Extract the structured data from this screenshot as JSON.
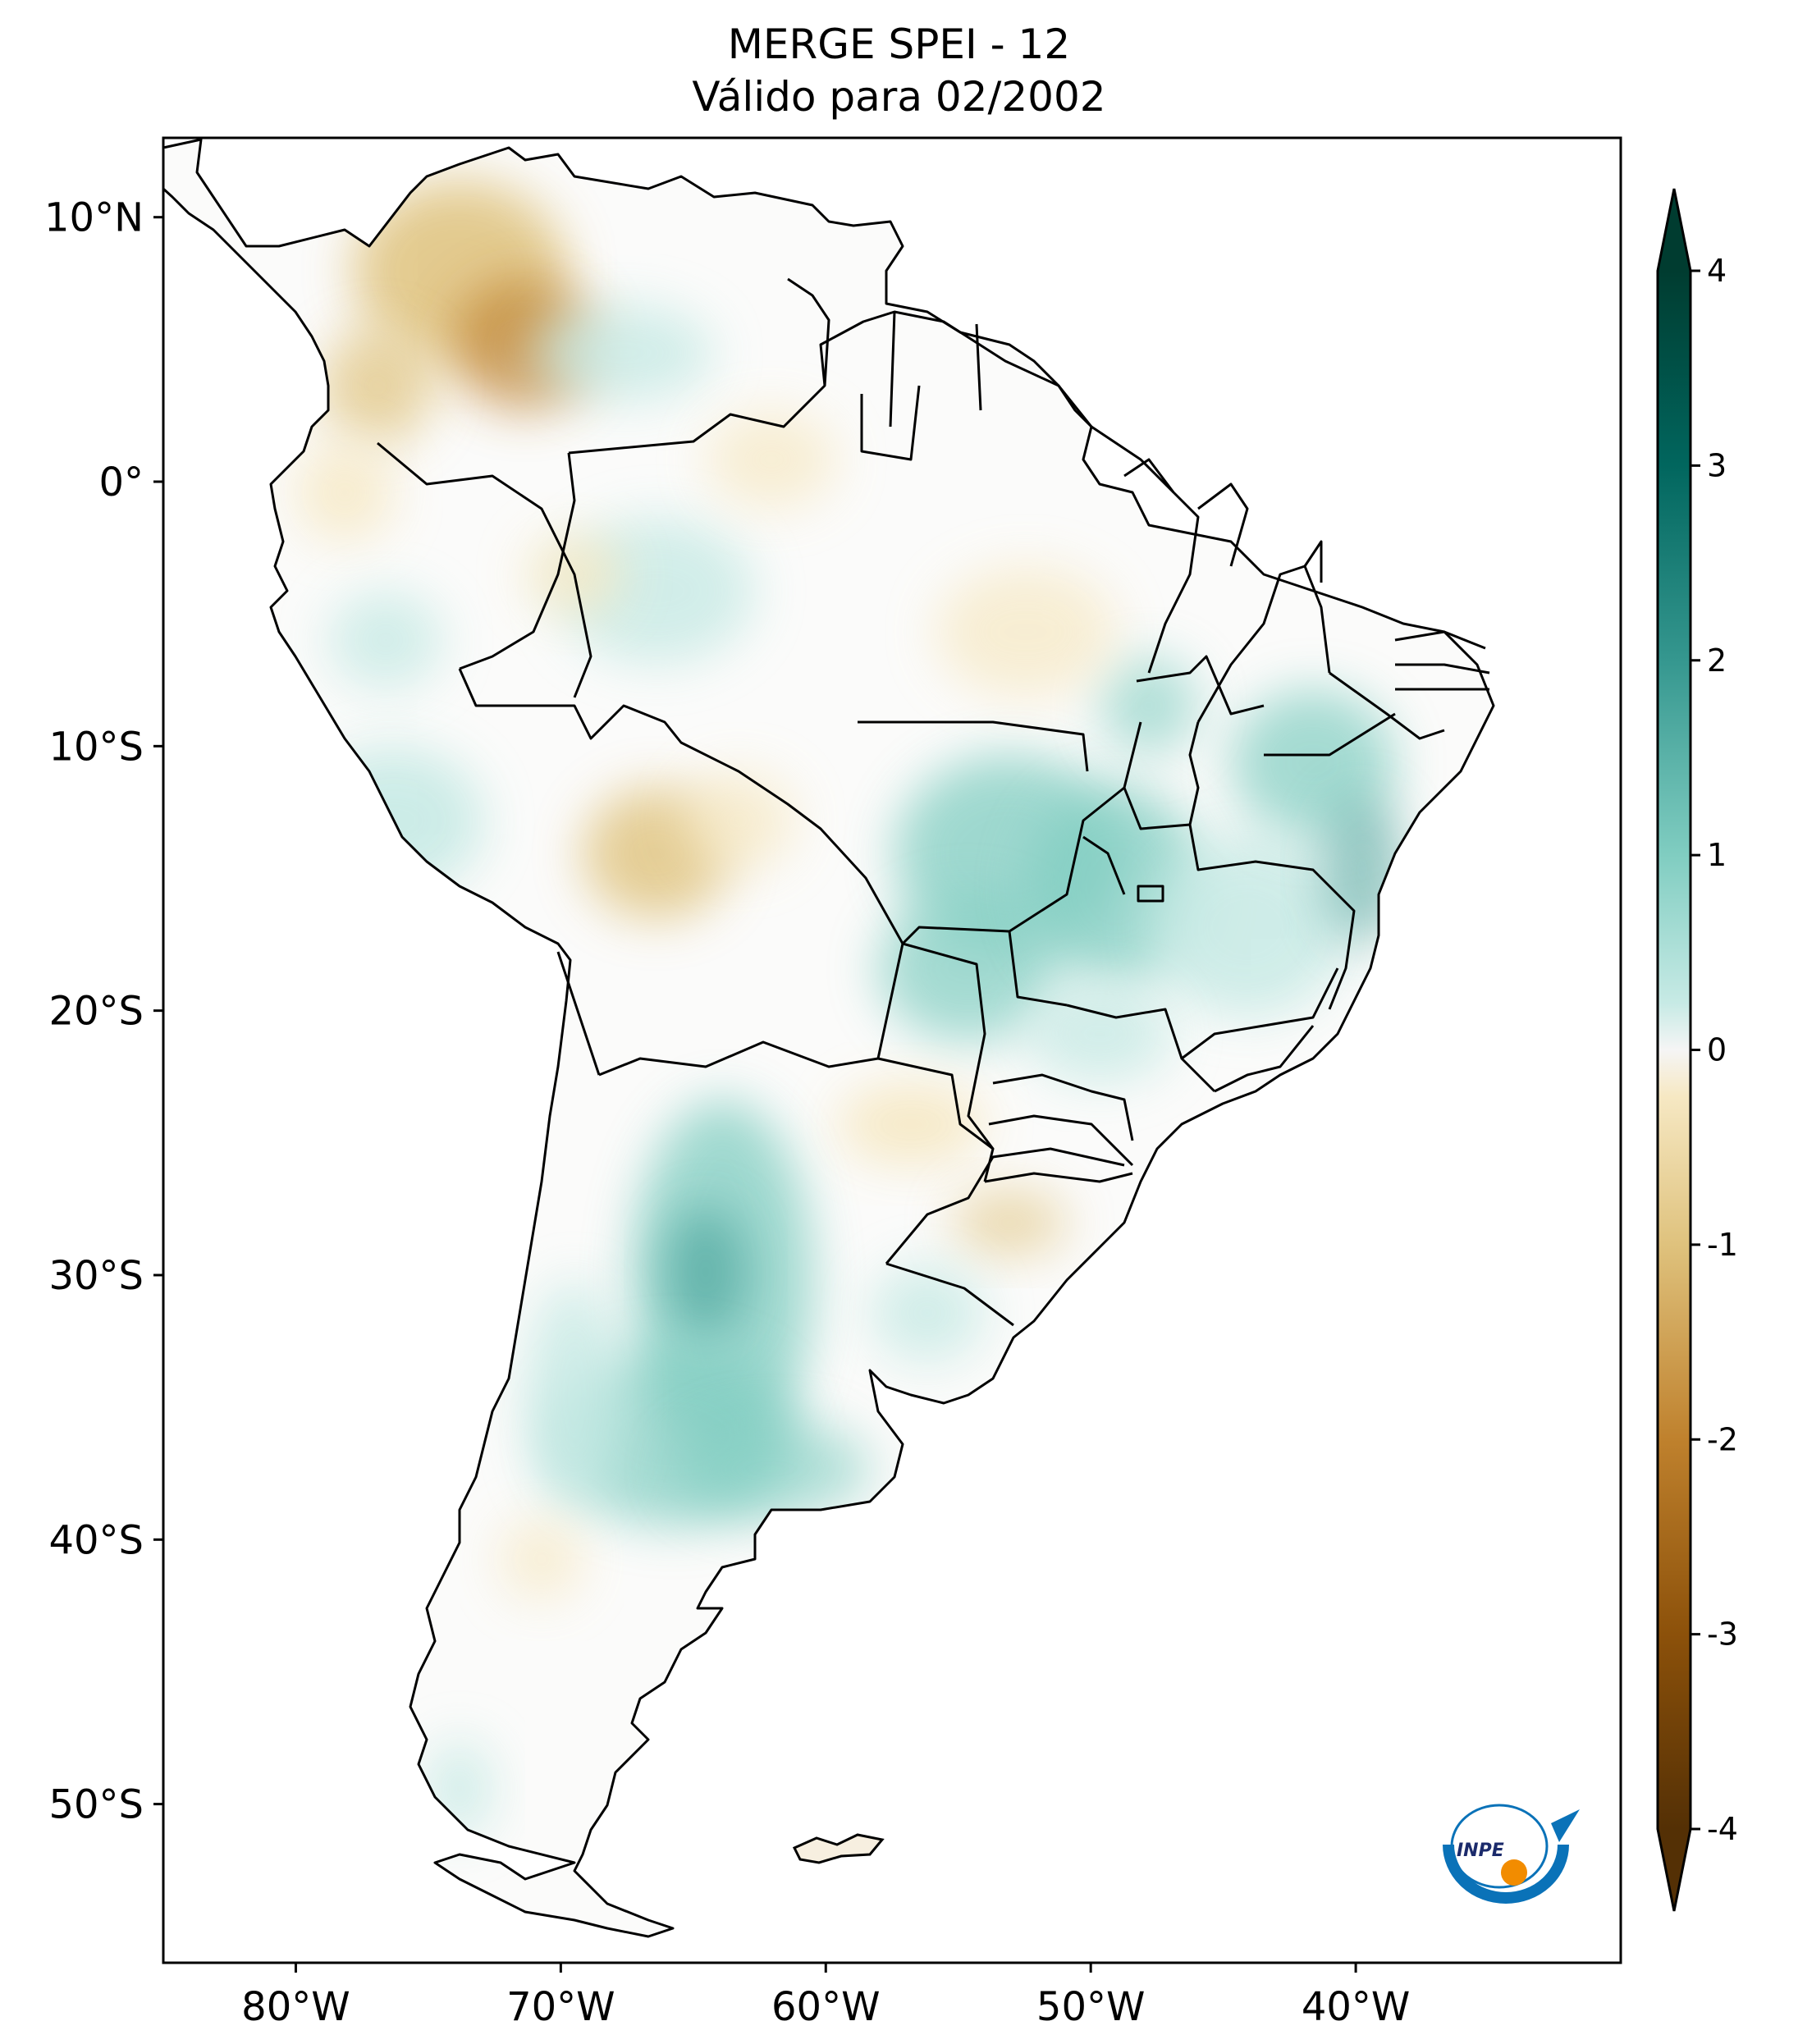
{
  "title": {
    "line1": "MERGE   SPEI - 12",
    "line2": "Válido para 02/2002"
  },
  "map": {
    "region": "South America",
    "variable": "SPEI - 12",
    "lon_range": [
      -85,
      -30
    ],
    "lat_range": [
      -56,
      13
    ],
    "lat_ticks": [
      {
        "value": 10,
        "label": "10°N"
      },
      {
        "value": 0,
        "label": "0°"
      },
      {
        "value": -10,
        "label": "10°S"
      },
      {
        "value": -20,
        "label": "20°S"
      },
      {
        "value": -30,
        "label": "30°S"
      },
      {
        "value": -40,
        "label": "40°S"
      },
      {
        "value": -50,
        "label": "50°S"
      }
    ],
    "lon_ticks": [
      {
        "value": -80,
        "label": "80°W"
      },
      {
        "value": -70,
        "label": "70°W"
      },
      {
        "value": -60,
        "label": "60°W"
      },
      {
        "value": -50,
        "label": "50°W"
      },
      {
        "value": -40,
        "label": "40°W"
      }
    ]
  },
  "colorbar": {
    "range": [
      -4,
      4
    ],
    "ticks": [
      "4",
      "3",
      "2",
      "1",
      "0",
      "-1",
      "-2",
      "-3",
      "-4"
    ],
    "extend": "both",
    "colors": {
      "min": "#543005",
      "dry_strong": "#8c510a",
      "dry_mid": "#bf812d",
      "dry_light": "#dfc27d",
      "dry_faint": "#f6e8c3",
      "neutral": "#f5f5f5",
      "wet_faint": "#c7eae5",
      "wet_light": "#80cdc1",
      "wet_mid": "#35978f",
      "wet_strong": "#01665e",
      "max": "#003c30"
    }
  },
  "logo": {
    "text": "INPE",
    "ring_color": "#0a72b8",
    "dot_color": "#f28c00"
  }
}
